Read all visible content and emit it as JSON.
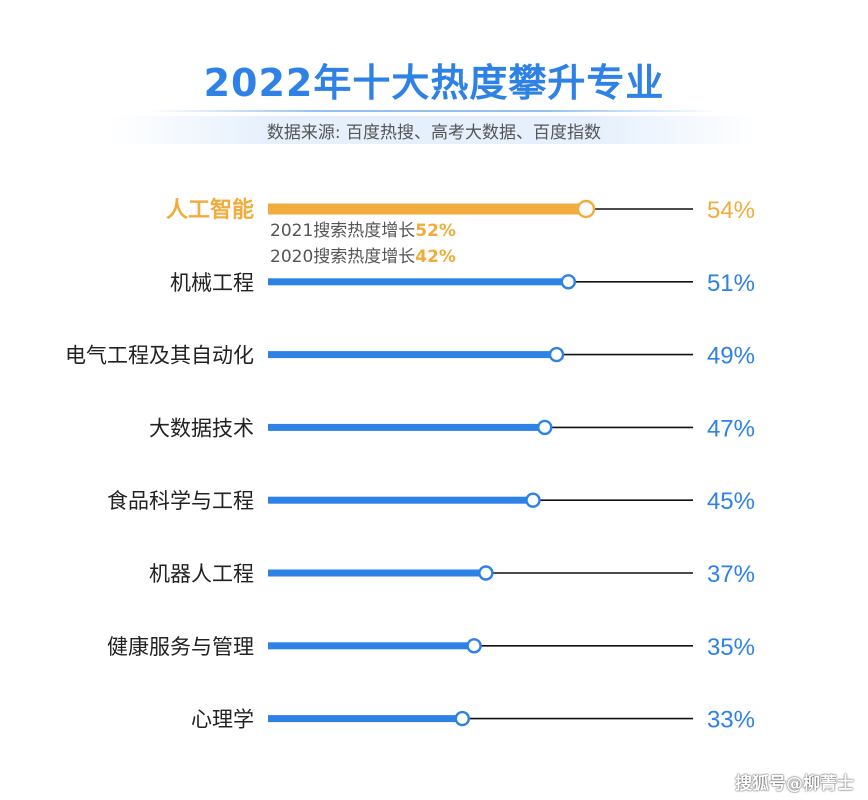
{
  "title": "2022年十大热度攀升专业",
  "subtitle": "数据来源: 百度热搜、高考大数据、百度指数",
  "colors": {
    "blue": "#2e82e6",
    "orange": "#f0ac3c",
    "line": "#111111",
    "text": "#222222"
  },
  "annotation": {
    "line1_prefix": "2021搜索热度增长",
    "line1_value": "52%",
    "line2_prefix": "2020搜索热度增长",
    "line2_value": "42%"
  },
  "watermark": "搜狐号@柳菁士",
  "chart_data": {
    "type": "bar",
    "title": "2022年十大热度攀升专业",
    "subtitle": "数据来源: 百度热搜、高考大数据、百度指数",
    "categories": [
      "人工智能",
      "机械工程",
      "电气工程及其自动化",
      "大数据技术",
      "食品科学与工程",
      "机器人工程",
      "健康服务与管理",
      "心理学"
    ],
    "values": [
      54,
      51,
      49,
      47,
      45,
      37,
      35,
      33
    ],
    "labels": [
      "54%",
      "51%",
      "49%",
      "47%",
      "45%",
      "37%",
      "35%",
      "33%"
    ],
    "highlight_index": 0,
    "unit": "%",
    "orientation": "horizontal"
  }
}
